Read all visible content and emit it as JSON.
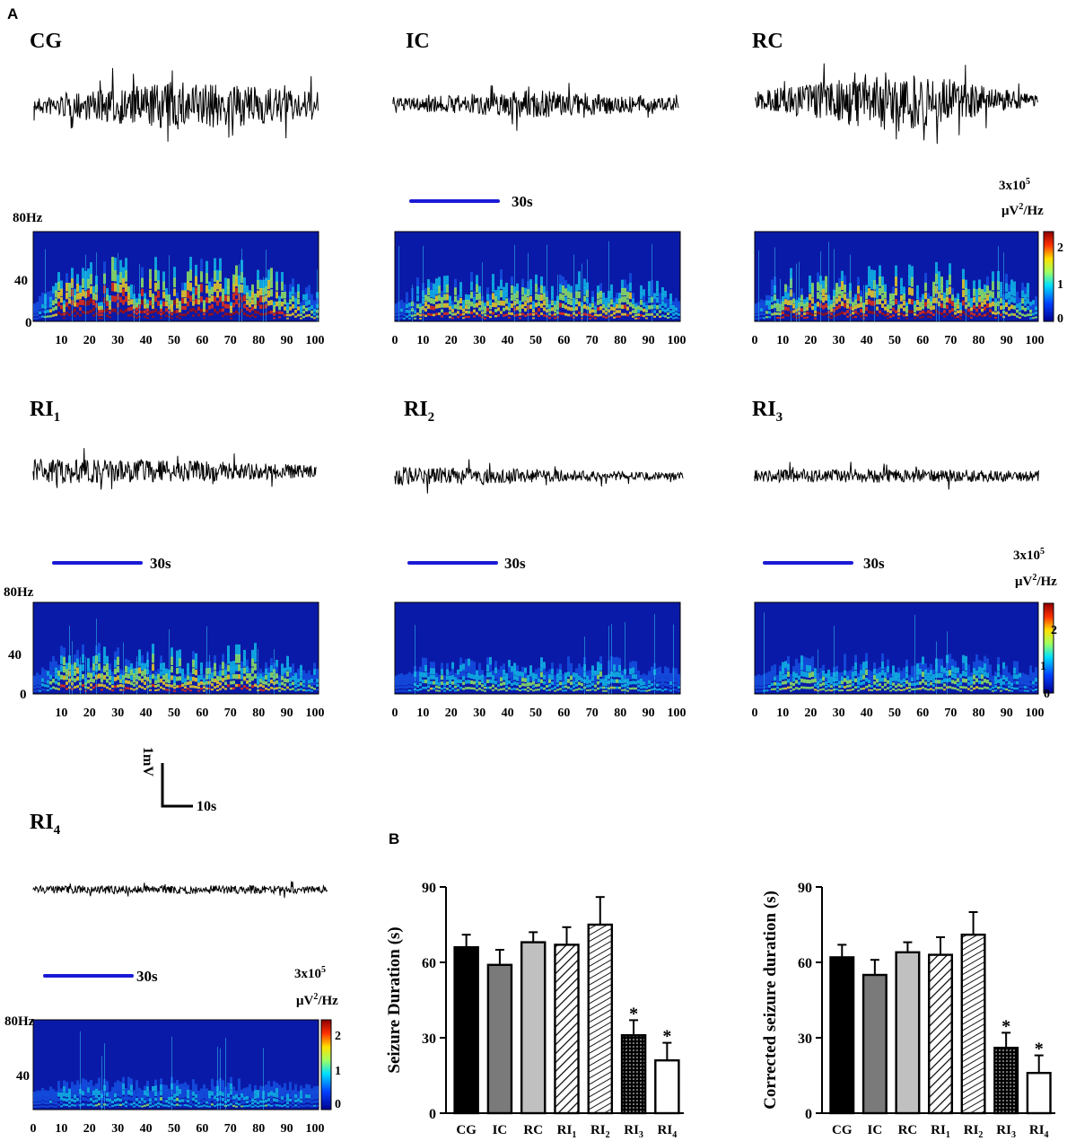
{
  "figure": {
    "panel_a_label": "A",
    "panel_b_label": "B",
    "freq_top_label": "80Hz",
    "freq_mid_label": "40",
    "freq_zero_label": "0",
    "time_bar_label": "30s",
    "colorbar_title_line1": "3x10",
    "colorbar_title_exp": "5",
    "colorbar_title_line2_prefix": "μV",
    "colorbar_title_line2_exp": "2",
    "colorbar_title_line2_suffix": "/Hz",
    "colorbar_ticks": [
      "2",
      "1",
      "0"
    ],
    "scale_bar_vertical_label": "1mV",
    "scale_bar_horizontal_label": "10s",
    "groups": [
      {
        "base": "CG",
        "sub": ""
      },
      {
        "base": "IC",
        "sub": ""
      },
      {
        "base": "RC",
        "sub": ""
      },
      {
        "base": "RI",
        "sub": "1"
      },
      {
        "base": "RI",
        "sub": "2"
      },
      {
        "base": "RI",
        "sub": "3"
      },
      {
        "base": "RI",
        "sub": "4"
      }
    ],
    "spectrogram_time_ticks": [
      [
        "10",
        "20",
        "30",
        "40",
        "50",
        "60",
        "70",
        "80",
        "90",
        "100"
      ],
      [
        "0",
        "10",
        "20",
        "30",
        "40",
        "50",
        "60",
        "70",
        "80",
        "90",
        "100"
      ],
      [
        "0",
        "10",
        "20",
        "30",
        "40",
        "50",
        "60",
        "70",
        "80",
        "90",
        "100"
      ],
      [
        "10",
        "20",
        "30",
        "40",
        "50",
        "60",
        "70",
        "80",
        "90",
        "100"
      ],
      [
        "0",
        "10",
        "20",
        "30",
        "40",
        "50",
        "60",
        "70",
        "80",
        "90",
        "100"
      ],
      [
        "0",
        "10",
        "20",
        "30",
        "40",
        "50",
        "60",
        "70",
        "80",
        "90",
        "100"
      ],
      [
        "0",
        "10",
        "20",
        "30",
        "40",
        "50",
        "60",
        "70",
        "80",
        "90",
        "100"
      ]
    ],
    "colors": {
      "trace": "#000000",
      "time_bar": "#1a1ad6",
      "spectrogram_bg": "#0a1aa8",
      "hot": "#b0141a"
    }
  },
  "chart_data": [
    {
      "type": "bar",
      "ylabel": "Seizure Duration (s)",
      "ylim": [
        0,
        90
      ],
      "yticks": [
        "0",
        "30",
        "60",
        "90"
      ],
      "categories": [
        "CG",
        "IC",
        "RC",
        "RI1",
        "RI2",
        "RI3",
        "RI4"
      ],
      "values": [
        66,
        59,
        68,
        67,
        75,
        31,
        21
      ],
      "errors": [
        5,
        6,
        4,
        7,
        11,
        6,
        7
      ],
      "significant": [
        "",
        "",
        "",
        "",
        "",
        "*",
        "*"
      ]
    },
    {
      "type": "bar",
      "ylabel": "Corrected seizure duration (s)",
      "ylim": [
        0,
        90
      ],
      "yticks": [
        "0",
        "30",
        "60",
        "90"
      ],
      "categories": [
        "CG",
        "IC",
        "RC",
        "RI1",
        "RI2",
        "RI3",
        "RI4"
      ],
      "values": [
        62,
        55,
        64,
        63,
        71,
        26,
        16
      ],
      "errors": [
        5,
        6,
        4,
        7,
        9,
        6,
        7
      ],
      "significant": [
        "",
        "",
        "",
        "",
        "",
        "*",
        "*"
      ]
    }
  ]
}
